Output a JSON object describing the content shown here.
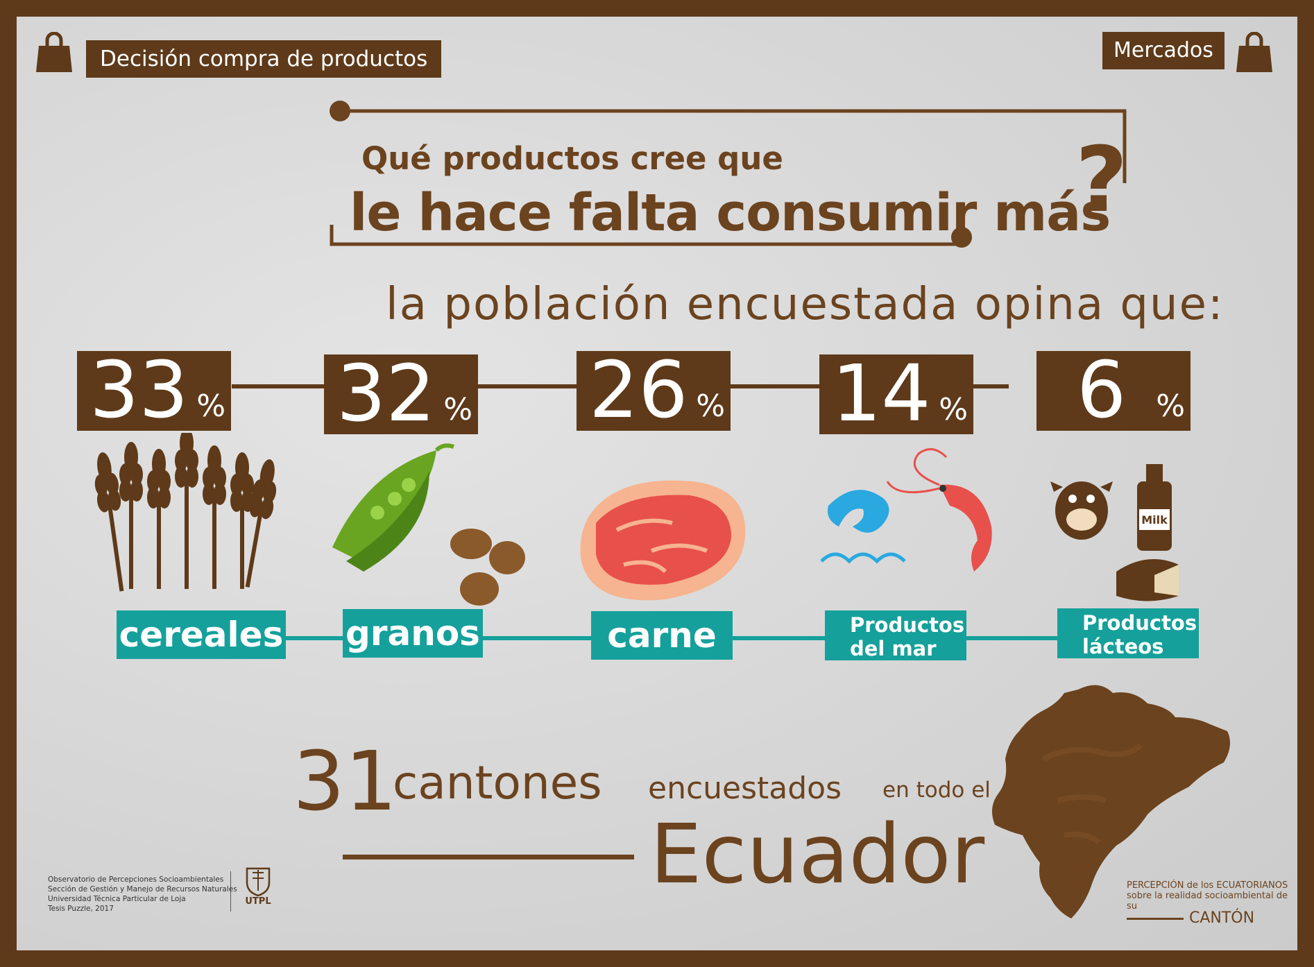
{
  "header": {
    "left_tag": "Decisión compra de productos",
    "right_tag": "Mercados",
    "left_icon": "shopping-bag-icon",
    "right_icon": "shopping-bag-icon"
  },
  "question": {
    "line1": "Qué productos cree que",
    "line2": "le hace falta consumir más",
    "mark": "?"
  },
  "subtitle": "la población encuestada opina que:",
  "chart_data": {
    "type": "table",
    "categories": [
      "cereales",
      "granos",
      "carne",
      "Productos del mar",
      "Productos lácteos"
    ],
    "values": [
      33,
      32,
      26,
      14,
      6
    ],
    "unit": "%",
    "icons": [
      "wheat-icon",
      "pea-pod-bean-icon",
      "meat-steak-icon",
      "fish-shrimp-icon",
      "cow-milk-cheese-icon"
    ]
  },
  "display": {
    "values": [
      "33",
      "32",
      "26",
      "14",
      "6"
    ],
    "pct_symbol": "%",
    "labels_line1": [
      "cereales",
      "granos",
      "carne",
      "Productos",
      "Productos"
    ],
    "labels_line2": [
      "",
      "",
      "",
      "del mar",
      "lácteos"
    ]
  },
  "footer": {
    "number": "31",
    "word1": "cantones",
    "word2": "encuestados",
    "word3": "en todo el",
    "country": "Ecuador",
    "credits": [
      "Observatorio de Percepciones Socioambientales",
      "Sección de Gestión y Manejo de Recursos Naturales",
      "Universidad Técnica Particular de Loja",
      "Tesis Puzzle, 2017"
    ],
    "utpl": "UTPL",
    "brand_line1": "PERCEPCIÓN de los ECUATORIANOS",
    "brand_line2": "sobre la realidad socioambiental de su",
    "brand_line3": "CANTÓN"
  },
  "colors": {
    "brown": "#5e3a1a",
    "brown_text": "#6b431f",
    "teal": "#16a09b",
    "background": "#d8d8d8"
  }
}
